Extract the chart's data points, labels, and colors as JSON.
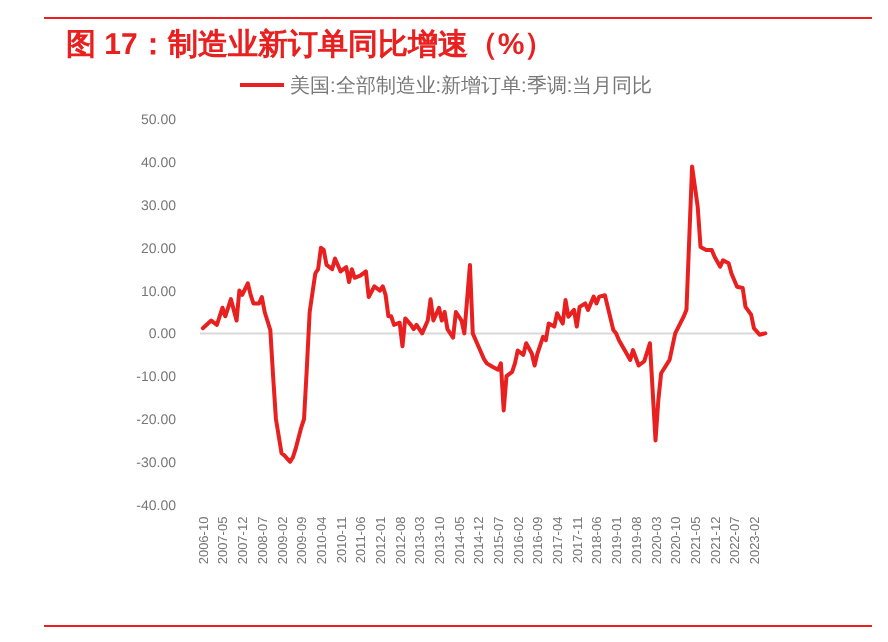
{
  "chart_data": {
    "type": "line",
    "title": "图 17：制造业新订单同比增速（%）",
    "legend": "top",
    "xlim": [
      "2006-09",
      "2023-07"
    ],
    "ylim": [
      -40,
      50
    ],
    "yticks": [
      {
        "value": 50,
        "label": "50.00"
      },
      {
        "value": 40,
        "label": "40.00"
      },
      {
        "value": 30,
        "label": "30.00"
      },
      {
        "value": 20,
        "label": "20.00"
      },
      {
        "value": 10,
        "label": "10.00"
      },
      {
        "value": 0,
        "label": "0.00"
      },
      {
        "value": -10,
        "label": "-10.00"
      },
      {
        "value": -20,
        "label": "-20.00"
      },
      {
        "value": -30,
        "label": "-30.00"
      },
      {
        "value": -40,
        "label": "-40.00"
      }
    ],
    "xticks": [
      "2006-10",
      "2007-05",
      "2007-12",
      "2008-07",
      "2009-02",
      "2009-09",
      "2010-04",
      "2010-11",
      "2011-06",
      "2012-01",
      "2012-08",
      "2013-03",
      "2013-10",
      "2014-05",
      "2014-12",
      "2015-07",
      "2016-02",
      "2016-09",
      "2017-04",
      "2017-11",
      "2018-06",
      "2019-01",
      "2019-08",
      "2020-03",
      "2020-10",
      "2021-05",
      "2021-12",
      "2022-07",
      "2023-02"
    ],
    "series": [
      {
        "name": "美国:全部制造业:新增订单:季调:当月同比",
        "color": "#e8201f",
        "x": [
          "2006-10",
          "2007-01",
          "2007-03",
          "2007-05",
          "2007-06",
          "2007-08",
          "2007-10",
          "2007-11",
          "2007-12",
          "2008-02",
          "2008-03",
          "2008-04",
          "2008-06",
          "2008-07",
          "2008-08",
          "2008-10",
          "2008-11",
          "2008-12",
          "2009-02",
          "2009-03",
          "2009-05",
          "2009-06",
          "2009-07",
          "2009-09",
          "2009-10",
          "2009-11",
          "2009-12",
          "2010-02",
          "2010-03",
          "2010-04",
          "2010-05",
          "2010-06",
          "2010-08",
          "2010-09",
          "2010-11",
          "2011-01",
          "2011-02",
          "2011-03",
          "2011-04",
          "2011-06",
          "2011-08",
          "2011-09",
          "2011-11",
          "2012-01",
          "2012-02",
          "2012-03",
          "2012-04",
          "2012-05",
          "2012-06",
          "2012-08",
          "2012-09",
          "2012-10",
          "2012-12",
          "2013-01",
          "2013-02",
          "2013-03",
          "2013-04",
          "2013-06",
          "2013-07",
          "2013-08",
          "2013-10",
          "2013-11",
          "2013-12",
          "2014-01",
          "2014-03",
          "2014-04",
          "2014-06",
          "2014-07",
          "2014-09",
          "2014-10",
          "2014-12",
          "2015-02",
          "2015-03",
          "2015-05",
          "2015-07",
          "2015-08",
          "2015-09",
          "2015-10",
          "2015-12",
          "2016-01",
          "2016-02",
          "2016-04",
          "2016-05",
          "2016-07",
          "2016-08",
          "2016-09",
          "2016-11",
          "2016-12",
          "2017-01",
          "2017-03",
          "2017-04",
          "2017-06",
          "2017-07",
          "2017-08",
          "2017-10",
          "2017-11",
          "2017-12",
          "2018-02",
          "2018-03",
          "2018-05",
          "2018-06",
          "2018-07",
          "2018-09",
          "2018-10",
          "2018-12",
          "2019-01",
          "2019-02",
          "2019-04",
          "2019-06",
          "2019-07",
          "2019-09",
          "2019-11",
          "2020-01",
          "2020-03",
          "2020-04",
          "2020-05",
          "2020-08",
          "2020-10",
          "2021-01",
          "2021-02",
          "2021-04",
          "2021-06",
          "2021-07",
          "2021-09",
          "2021-11",
          "2021-12",
          "2022-02",
          "2022-03",
          "2022-05",
          "2022-06",
          "2022-08",
          "2022-10",
          "2022-11",
          "2023-01",
          "2023-02",
          "2023-04",
          "2023-06"
        ],
        "values": [
          1.2,
          3,
          2,
          6,
          4,
          8,
          3,
          10,
          9,
          11.7,
          9,
          7,
          7,
          8.5,
          5,
          0.8,
          -10,
          -20,
          -28,
          -28.5,
          -30,
          -29,
          -27,
          -22,
          -20,
          -8,
          5,
          14,
          15,
          20,
          19.5,
          16,
          15,
          17.5,
          14.5,
          15.5,
          12,
          15,
          13,
          13.5,
          14.5,
          8.5,
          11,
          10,
          11,
          9,
          4,
          4,
          2,
          2.5,
          -3,
          3.5,
          2,
          1,
          2,
          1,
          0,
          3,
          8,
          3,
          6,
          3,
          5,
          1,
          -1,
          5,
          3,
          0,
          16,
          0,
          -3,
          -6,
          -7,
          -7.8,
          -8.5,
          -7,
          -18,
          -10,
          -9,
          -7,
          -4,
          -5,
          -2.3,
          -4.7,
          -7.5,
          -4.7,
          -0.8,
          -1.6,
          2.3,
          1.6,
          4.7,
          2.3,
          7.8,
          3.9,
          5.5,
          1.6,
          6.2,
          7,
          5.5,
          8.6,
          7,
          8.6,
          8.9,
          6.2,
          0.8,
          0,
          -1.6,
          -3.9,
          -6.2,
          -3.9,
          -7.5,
          -6.5,
          -2.3,
          -25,
          -15.6,
          -9.3,
          -6.2,
          0,
          3.9,
          5.5,
          39,
          29.6,
          20.2,
          19.5,
          19.5,
          17.9,
          15.6,
          17.1,
          16.4,
          14,
          10.9,
          10.6,
          6.2,
          4.4,
          1.2,
          -0.3,
          0
        ]
      }
    ]
  }
}
